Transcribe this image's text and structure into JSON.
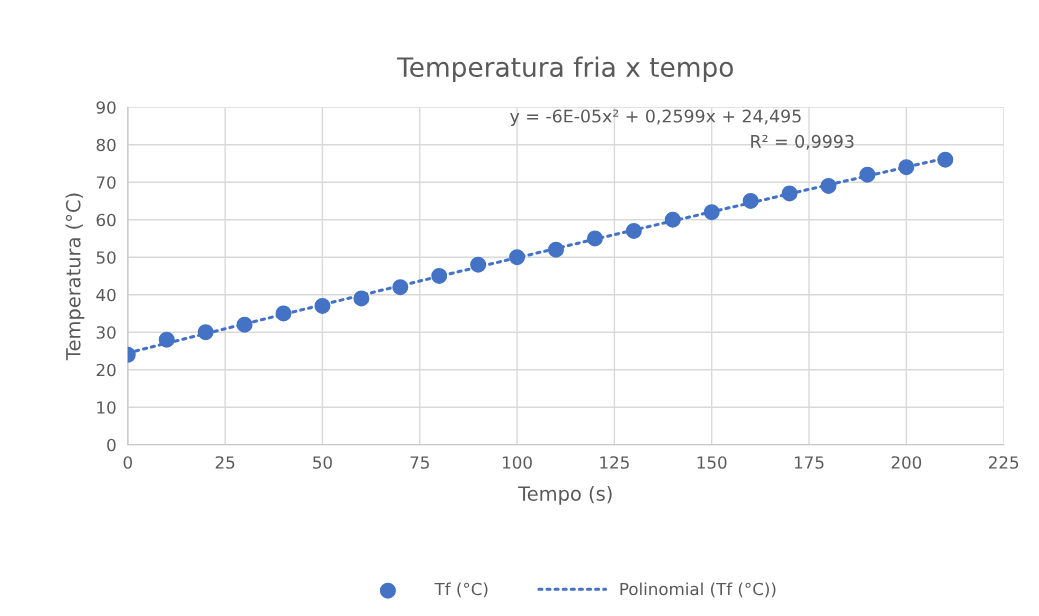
{
  "chart_data": {
    "type": "scatter",
    "title": "Temperatura fria x tempo",
    "xlabel": "Tempo (s)",
    "ylabel": "Temperatura (°C)",
    "xlim": [
      0,
      225
    ],
    "xticks": [
      0,
      25,
      50,
      75,
      100,
      125,
      150,
      175,
      200,
      225
    ],
    "ylim": [
      0,
      90
    ],
    "yticks": [
      0,
      10,
      20,
      30,
      40,
      50,
      60,
      70,
      80,
      90
    ],
    "grid": true,
    "legend": "bottom",
    "annotations": [
      "y = -6E-05x² + 0,2599x + 24,495",
      "R² = 0,9993"
    ],
    "series": [
      {
        "name": "Tf (°C)",
        "marker": "circle",
        "color": "#4472c4",
        "x": [
          0,
          10,
          20,
          30,
          40,
          50,
          60,
          70,
          80,
          90,
          100,
          110,
          120,
          130,
          140,
          150,
          160,
          170,
          180,
          190,
          200,
          210
        ],
        "values": [
          24,
          28,
          30,
          32,
          35,
          37,
          39,
          42,
          45,
          48,
          50,
          52,
          55,
          57,
          60,
          62,
          65,
          67,
          69,
          72,
          74,
          76
        ]
      },
      {
        "name": "Polinomial (Tf (°C))",
        "type": "line",
        "line_style": "dotted",
        "color": "#4472c4",
        "x": [
          0,
          30,
          60,
          90,
          120,
          150,
          180,
          210
        ],
        "values": [
          24.5,
          32.2,
          39.9,
          47.4,
          54.8,
          62.1,
          69.3,
          76.4
        ]
      }
    ]
  }
}
